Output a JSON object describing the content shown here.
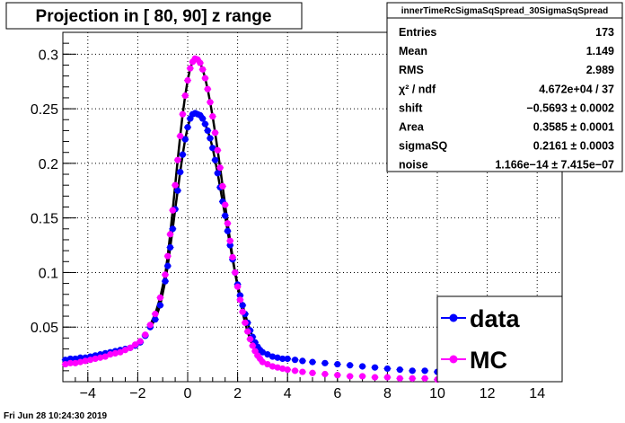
{
  "title": "Projection in [  80,  90] z range",
  "footer_timestamp": "Fri Jun 28 10:24:30 2019",
  "stats_box": {
    "name": "innerTimeRcSigmaSqSpread_30SigmaSqSpread",
    "rows": [
      {
        "label": "Entries",
        "value": "173"
      },
      {
        "label": "Mean",
        "value": "1.149"
      },
      {
        "label": "RMS",
        "value": "2.989"
      },
      {
        "label": "χ² / ndf",
        "value": "4.672e+04 / 37"
      },
      {
        "label": "shift",
        "value": "−0.5693 ± 0.0002"
      },
      {
        "label": "Area",
        "value": "0.3585 ± 0.0001"
      },
      {
        "label": "sigmaSQ",
        "value": "0.2161 ± 0.0003"
      },
      {
        "label": "noise",
        "value": "1.166e−14 ± 7.415e−07"
      }
    ]
  },
  "chart_data": {
    "type": "scatter",
    "title": "Projection in [  80,  90] z range",
    "xlim": [
      -5,
      15
    ],
    "ylim": [
      0,
      0.32
    ],
    "x_ticks": [
      "−4",
      "−2",
      "0",
      "2",
      "4",
      "6",
      "8",
      "10",
      "12",
      "14"
    ],
    "y_ticks": [
      "0.05",
      "0.1",
      "0.15",
      "0.2",
      "0.25",
      "0.3"
    ],
    "grid": true,
    "legend_position": "bottom-right",
    "series": [
      {
        "name": "data",
        "color": "#0000ff",
        "x": [
          -4.9,
          -4.7,
          -4.5,
          -4.3,
          -4.1,
          -3.9,
          -3.7,
          -3.5,
          -3.3,
          -3.1,
          -2.9,
          -2.7,
          -2.5,
          -2.3,
          -2.1,
          -1.9,
          -1.7,
          -1.5,
          -1.3,
          -1.1,
          -0.9,
          -0.8,
          -0.7,
          -0.6,
          -0.5,
          -0.4,
          -0.3,
          -0.2,
          -0.1,
          0.0,
          0.1,
          0.2,
          0.3,
          0.4,
          0.5,
          0.6,
          0.7,
          0.8,
          0.9,
          1.0,
          1.1,
          1.2,
          1.3,
          1.4,
          1.5,
          1.6,
          1.7,
          1.8,
          1.9,
          2.0,
          2.1,
          2.2,
          2.3,
          2.4,
          2.5,
          2.6,
          2.7,
          2.8,
          2.9,
          3.0,
          3.2,
          3.4,
          3.6,
          3.8,
          4.0,
          4.3,
          4.6,
          5.0,
          5.5,
          6.0,
          6.5,
          7.0,
          7.5,
          8.0,
          8.5,
          9.0,
          9.5,
          10.0
        ],
        "y": [
          0.02,
          0.021,
          0.021,
          0.022,
          0.022,
          0.023,
          0.024,
          0.025,
          0.026,
          0.027,
          0.028,
          0.029,
          0.03,
          0.031,
          0.033,
          0.036,
          0.042,
          0.05,
          0.057,
          0.07,
          0.092,
          0.106,
          0.123,
          0.14,
          0.158,
          0.175,
          0.192,
          0.208,
          0.222,
          0.233,
          0.241,
          0.245,
          0.246,
          0.245,
          0.244,
          0.241,
          0.236,
          0.23,
          0.223,
          0.214,
          0.203,
          0.191,
          0.178,
          0.165,
          0.152,
          0.138,
          0.125,
          0.112,
          0.1,
          0.089,
          0.079,
          0.07,
          0.062,
          0.054,
          0.047,
          0.041,
          0.036,
          0.032,
          0.029,
          0.027,
          0.025,
          0.023,
          0.022,
          0.021,
          0.021,
          0.02,
          0.019,
          0.018,
          0.017,
          0.016,
          0.015,
          0.014,
          0.013,
          0.012,
          0.011,
          0.01,
          0.01,
          0.009
        ]
      },
      {
        "name": "MC",
        "color": "#ff00ff",
        "x": [
          -4.9,
          -4.7,
          -4.5,
          -4.3,
          -4.1,
          -3.9,
          -3.7,
          -3.5,
          -3.3,
          -3.1,
          -2.9,
          -2.7,
          -2.5,
          -2.3,
          -2.1,
          -1.9,
          -1.7,
          -1.5,
          -1.3,
          -1.1,
          -0.9,
          -0.8,
          -0.7,
          -0.6,
          -0.5,
          -0.4,
          -0.3,
          -0.2,
          -0.1,
          0.0,
          0.1,
          0.2,
          0.3,
          0.4,
          0.5,
          0.6,
          0.7,
          0.8,
          0.9,
          1.0,
          1.1,
          1.2,
          1.3,
          1.4,
          1.5,
          1.6,
          1.7,
          1.8,
          1.9,
          2.0,
          2.1,
          2.2,
          2.3,
          2.4,
          2.5,
          2.6,
          2.7,
          2.8,
          2.9,
          3.0,
          3.2,
          3.4,
          3.6,
          3.8,
          4.0,
          4.3,
          4.6,
          5.0,
          5.5,
          6.0,
          6.5,
          7.0,
          7.5,
          8.0,
          8.5,
          9.0,
          9.5,
          10.0
        ],
        "y": [
          0.016,
          0.017,
          0.017,
          0.018,
          0.019,
          0.02,
          0.021,
          0.022,
          0.023,
          0.025,
          0.026,
          0.027,
          0.029,
          0.031,
          0.034,
          0.037,
          0.043,
          0.052,
          0.062,
          0.077,
          0.098,
          0.115,
          0.135,
          0.157,
          0.18,
          0.203,
          0.225,
          0.245,
          0.262,
          0.276,
          0.287,
          0.293,
          0.296,
          0.295,
          0.292,
          0.286,
          0.278,
          0.268,
          0.256,
          0.243,
          0.228,
          0.212,
          0.196,
          0.179,
          0.162,
          0.145,
          0.129,
          0.114,
          0.1,
          0.087,
          0.075,
          0.064,
          0.054,
          0.046,
          0.039,
          0.033,
          0.028,
          0.024,
          0.021,
          0.018,
          0.016,
          0.014,
          0.013,
          0.012,
          0.011,
          0.01,
          0.009,
          0.008,
          0.007,
          0.006,
          0.005,
          0.005,
          0.004,
          0.004,
          0.003,
          0.003,
          0.003,
          0.002
        ]
      }
    ]
  }
}
